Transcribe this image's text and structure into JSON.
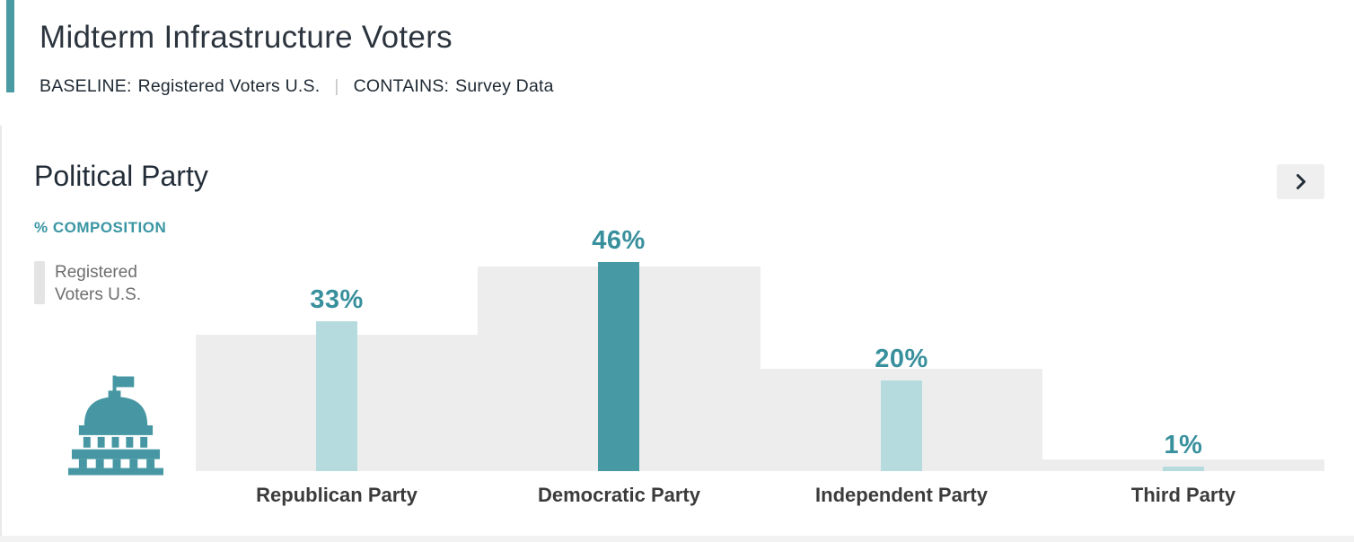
{
  "colors": {
    "accent": "#4a9aa3",
    "teal_dark": "#4799a4",
    "teal_light": "#b6dbdf",
    "value_label": "#39909d",
    "baseline_bar": "#ededee",
    "axis_label": "#3a96a3",
    "title_text": "#2c343e",
    "category_text": "#3b3b3b",
    "legend_text": "#6e6e6e"
  },
  "header": {
    "title": "Midterm Infrastructure Voters",
    "baseline_label": "BASELINE:",
    "baseline_value": "Registered Voters U.S.",
    "divider": "|",
    "contains_label": "CONTAINS:",
    "contains_value": "Survey Data"
  },
  "section": {
    "title": "Political Party",
    "axis_label": "% COMPOSITION",
    "legend_label": "Registered Voters U.S.",
    "more_icon": "chevron-right",
    "graphic_icon": "capitol-building"
  },
  "chart_data": {
    "type": "bar",
    "title": "Political Party",
    "ylabel": "% COMPOSITION",
    "categories": [
      "Republican Party",
      "Democratic Party",
      "Independent Party",
      "Third Party"
    ],
    "series": [
      {
        "name": "Registered Voters U.S.",
        "role": "baseline-background",
        "values": [
          30,
          45,
          22.5,
          2.5
        ]
      },
      {
        "name": "Survey Data",
        "role": "survey",
        "values": [
          33,
          46,
          20,
          1
        ],
        "value_labels": [
          "33%",
          "46%",
          "20%",
          "1%"
        ],
        "emphasized": [
          false,
          true,
          false,
          false
        ]
      }
    ],
    "ylim": [
      0,
      50
    ],
    "grid": false,
    "legend_position": "top-left",
    "value_labels_shown": true
  }
}
